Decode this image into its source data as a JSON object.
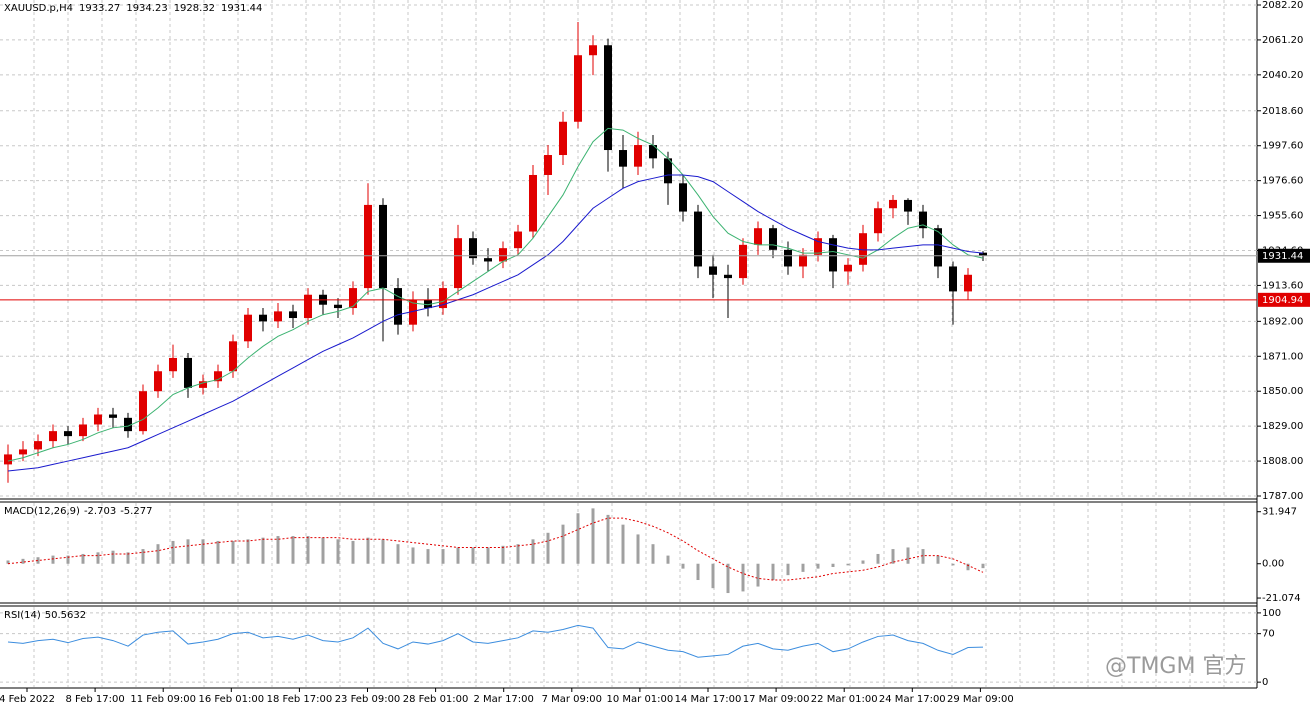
{
  "chart_data": [
    {
      "type": "candlestick",
      "symbol": "XAUUSD.p,H4",
      "bull_color": "#e00000",
      "bear_color": "#000000",
      "candles": [
        [
          1806,
          1818,
          1795,
          1812
        ],
        [
          1812,
          1820,
          1808,
          1815
        ],
        [
          1815,
          1824,
          1811,
          1820
        ],
        [
          1820,
          1830,
          1816,
          1826
        ],
        [
          1826,
          1829,
          1818,
          1823
        ],
        [
          1823,
          1834,
          1820,
          1830
        ],
        [
          1830,
          1840,
          1826,
          1836
        ],
        [
          1836,
          1840,
          1828,
          1834
        ],
        [
          1834,
          1837,
          1822,
          1826
        ],
        [
          1826,
          1854,
          1824,
          1850
        ],
        [
          1850,
          1866,
          1846,
          1862
        ],
        [
          1862,
          1878,
          1858,
          1870
        ],
        [
          1870,
          1873,
          1846,
          1852
        ],
        [
          1852,
          1860,
          1848,
          1856
        ],
        [
          1856,
          1866,
          1852,
          1862
        ],
        [
          1862,
          1884,
          1858,
          1880
        ],
        [
          1880,
          1900,
          1876,
          1896
        ],
        [
          1896,
          1900,
          1886,
          1892
        ],
        [
          1892,
          1903,
          1888,
          1898
        ],
        [
          1898,
          1902,
          1888,
          1894
        ],
        [
          1894,
          1912,
          1890,
          1908
        ],
        [
          1908,
          1911,
          1896,
          1902
        ],
        [
          1902,
          1906,
          1894,
          1900
        ],
        [
          1900,
          1916,
          1896,
          1912
        ],
        [
          1912,
          1975,
          1908,
          1962
        ],
        [
          1962,
          1966,
          1880,
          1912
        ],
        [
          1912,
          1918,
          1884,
          1890
        ],
        [
          1890,
          1910,
          1886,
          1905
        ],
        [
          1905,
          1912,
          1895,
          1900
        ],
        [
          1900,
          1916,
          1896,
          1912
        ],
        [
          1912,
          1950,
          1908,
          1942
        ],
        [
          1942,
          1946,
          1926,
          1930
        ],
        [
          1930,
          1936,
          1922,
          1928
        ],
        [
          1928,
          1940,
          1924,
          1936
        ],
        [
          1936,
          1950,
          1932,
          1946
        ],
        [
          1946,
          1986,
          1942,
          1980
        ],
        [
          1980,
          1998,
          1968,
          1992
        ],
        [
          1992,
          2018,
          1986,
          2012
        ],
        [
          2012,
          2072,
          2008,
          2052
        ],
        [
          2052,
          2064,
          2040,
          2058
        ],
        [
          2058,
          2062,
          1982,
          1995
        ],
        [
          1995,
          2004,
          1972,
          1985
        ],
        [
          1985,
          2006,
          1980,
          1998
        ],
        [
          1998,
          2004,
          1984,
          1990
        ],
        [
          1990,
          1994,
          1962,
          1975
        ],
        [
          1975,
          1980,
          1952,
          1958
        ],
        [
          1958,
          1962,
          1918,
          1925
        ],
        [
          1925,
          1932,
          1906,
          1920
        ],
        [
          1920,
          1926,
          1894,
          1918
        ],
        [
          1918,
          1942,
          1914,
          1938
        ],
        [
          1938,
          1952,
          1932,
          1948
        ],
        [
          1948,
          1950,
          1930,
          1935
        ],
        [
          1935,
          1940,
          1920,
          1925
        ],
        [
          1925,
          1936,
          1918,
          1932
        ],
        [
          1932,
          1946,
          1928,
          1942
        ],
        [
          1942,
          1944,
          1912,
          1922
        ],
        [
          1922,
          1930,
          1914,
          1926
        ],
        [
          1926,
          1950,
          1922,
          1945
        ],
        [
          1945,
          1964,
          1940,
          1960
        ],
        [
          1960,
          1968,
          1954,
          1965
        ],
        [
          1965,
          1966,
          1950,
          1958
        ],
        [
          1958,
          1962,
          1942,
          1948
        ],
        [
          1948,
          1950,
          1918,
          1925
        ],
        [
          1925,
          1928,
          1890,
          1910
        ],
        [
          1910,
          1924,
          1905,
          1920
        ],
        [
          1933.27,
          1934.23,
          1928.32,
          1931.44
        ]
      ],
      "ma": [
        {
          "color": "#3cb371",
          "values": [
            1808,
            1810,
            1813,
            1816,
            1818,
            1821,
            1825,
            1828,
            1829,
            1833,
            1840,
            1848,
            1852,
            1855,
            1857,
            1862,
            1870,
            1877,
            1883,
            1887,
            1892,
            1896,
            1898,
            1901,
            1910,
            1912,
            1907,
            1903,
            1902,
            1904,
            1910,
            1916,
            1922,
            1928,
            1932,
            1942,
            1955,
            1968,
            1985,
            2000,
            2008,
            2007,
            2002,
            1998,
            1990,
            1980,
            1968,
            1955,
            1945,
            1940,
            1938,
            1938,
            1936,
            1933,
            1933,
            1934,
            1932,
            1930,
            1935,
            1942,
            1948,
            1950,
            1946,
            1938,
            1932,
            1930
          ]
        },
        {
          "color": "#1a1acd",
          "values": [
            1802,
            1803,
            1804,
            1806,
            1808,
            1810,
            1812,
            1814,
            1816,
            1820,
            1824,
            1828,
            1832,
            1836,
            1840,
            1844,
            1849,
            1854,
            1859,
            1864,
            1869,
            1874,
            1878,
            1882,
            1887,
            1892,
            1896,
            1898,
            1900,
            1902,
            1905,
            1908,
            1912,
            1916,
            1920,
            1926,
            1932,
            1940,
            1950,
            1960,
            1966,
            1972,
            1976,
            1978,
            1980,
            1980,
            1979,
            1976,
            1970,
            1964,
            1958,
            1953,
            1948,
            1944,
            1940,
            1938,
            1936,
            1935,
            1935,
            1936,
            1937,
            1938,
            1938,
            1936,
            1934,
            1933
          ]
        }
      ],
      "level": 1904.94,
      "level_color": "#e00000",
      "ylim": [
        1785.8,
        2085.2
      ],
      "yticks": [
        {
          "value": 2082.2,
          "label": "2082.20"
        },
        {
          "value": 2061.2,
          "label": "2061.20"
        },
        {
          "value": 2040.2,
          "label": "2040.20"
        },
        {
          "value": 2018.6,
          "label": "2018.60"
        },
        {
          "value": 1997.6,
          "label": "1997.60"
        },
        {
          "value": 1976.6,
          "label": "1976.60"
        },
        {
          "value": 1955.6,
          "label": "1955.60"
        },
        {
          "value": 1934.6,
          "label": "1934.60"
        },
        {
          "value": 1913.6,
          "label": "1913.60"
        },
        {
          "value": 1892,
          "label": "1892.00"
        },
        {
          "value": 1871,
          "label": "1871.00"
        },
        {
          "value": 1850,
          "label": "1850.00"
        },
        {
          "value": 1829,
          "label": "1829.00"
        },
        {
          "value": 1808,
          "label": "1808.00"
        },
        {
          "value": 1787,
          "label": "1787.00"
        }
      ],
      "grid": true,
      "x_labels": [
        "4 Feb 2022",
        "8 Feb 17:00",
        "11 Feb 09:00",
        "16 Feb 01:00",
        "18 Feb 17:00",
        "23 Feb 09:00",
        "28 Feb 01:00",
        "2 Mar 17:00",
        "7 Mar 09:00",
        "10 Mar 01:00",
        "14 Mar 17:00",
        "17 Mar 09:00",
        "22 Mar 01:00",
        "24 Mar 17:00",
        "29 Mar 09:00"
      ]
    },
    {
      "type": "macd",
      "name": "MACD(12,26,9)",
      "hist_color": "#a0a0a0",
      "signal_color": "#e00000",
      "histogram": [
        2,
        3,
        4,
        5,
        5,
        6,
        7,
        8,
        7,
        9,
        12,
        14,
        15,
        15,
        14,
        14,
        15,
        16,
        17,
        17,
        17,
        16,
        15,
        14,
        16,
        15,
        12,
        10,
        9,
        9,
        10,
        10,
        10,
        11,
        12,
        15,
        19,
        24,
        31,
        34,
        30,
        24,
        18,
        12,
        5,
        -3,
        -10,
        -15,
        -18,
        -17,
        -14,
        -10,
        -7,
        -5,
        -3,
        -2,
        -1,
        2,
        6,
        9,
        10,
        9,
        5,
        -1,
        -4,
        -2.703
      ],
      "signal": [
        0,
        1,
        2,
        3,
        4,
        5,
        5,
        6,
        6,
        7,
        8,
        10,
        11,
        12,
        13,
        14,
        14,
        15,
        15,
        16,
        16,
        16,
        16,
        15,
        15,
        15,
        14,
        13,
        12,
        11,
        10,
        10,
        10,
        10,
        11,
        12,
        14,
        17,
        21,
        25,
        28,
        28,
        26,
        23,
        19,
        14,
        8,
        3,
        -2,
        -6,
        -9,
        -10,
        -10,
        -9,
        -8,
        -6,
        -5,
        -4,
        -2,
        1,
        3,
        5,
        5,
        3,
        -1,
        -5.277
      ],
      "ylim": [
        -23.5,
        37.3
      ],
      "yticks": [
        31.947,
        {
          "value": 0,
          "label": "0.00"
        },
        -21.074
      ]
    },
    {
      "type": "rsi",
      "name": "RSI(14)",
      "color": "#3c8dde",
      "values": [
        58,
        56,
        60,
        62,
        57,
        63,
        65,
        60,
        52,
        68,
        72,
        74,
        55,
        58,
        62,
        70,
        72,
        64,
        66,
        62,
        68,
        60,
        58,
        64,
        78,
        56,
        48,
        58,
        55,
        60,
        70,
        58,
        56,
        60,
        64,
        74,
        72,
        76,
        82,
        78,
        50,
        48,
        58,
        52,
        46,
        44,
        36,
        38,
        40,
        52,
        56,
        48,
        46,
        52,
        56,
        44,
        48,
        58,
        66,
        68,
        60,
        56,
        46,
        40,
        50,
        50.5632
      ],
      "ylim": [
        -7,
        108.5
      ],
      "yticks": [
        100,
        70,
        0
      ]
    }
  ],
  "watermark": "@TMGM 官方"
}
